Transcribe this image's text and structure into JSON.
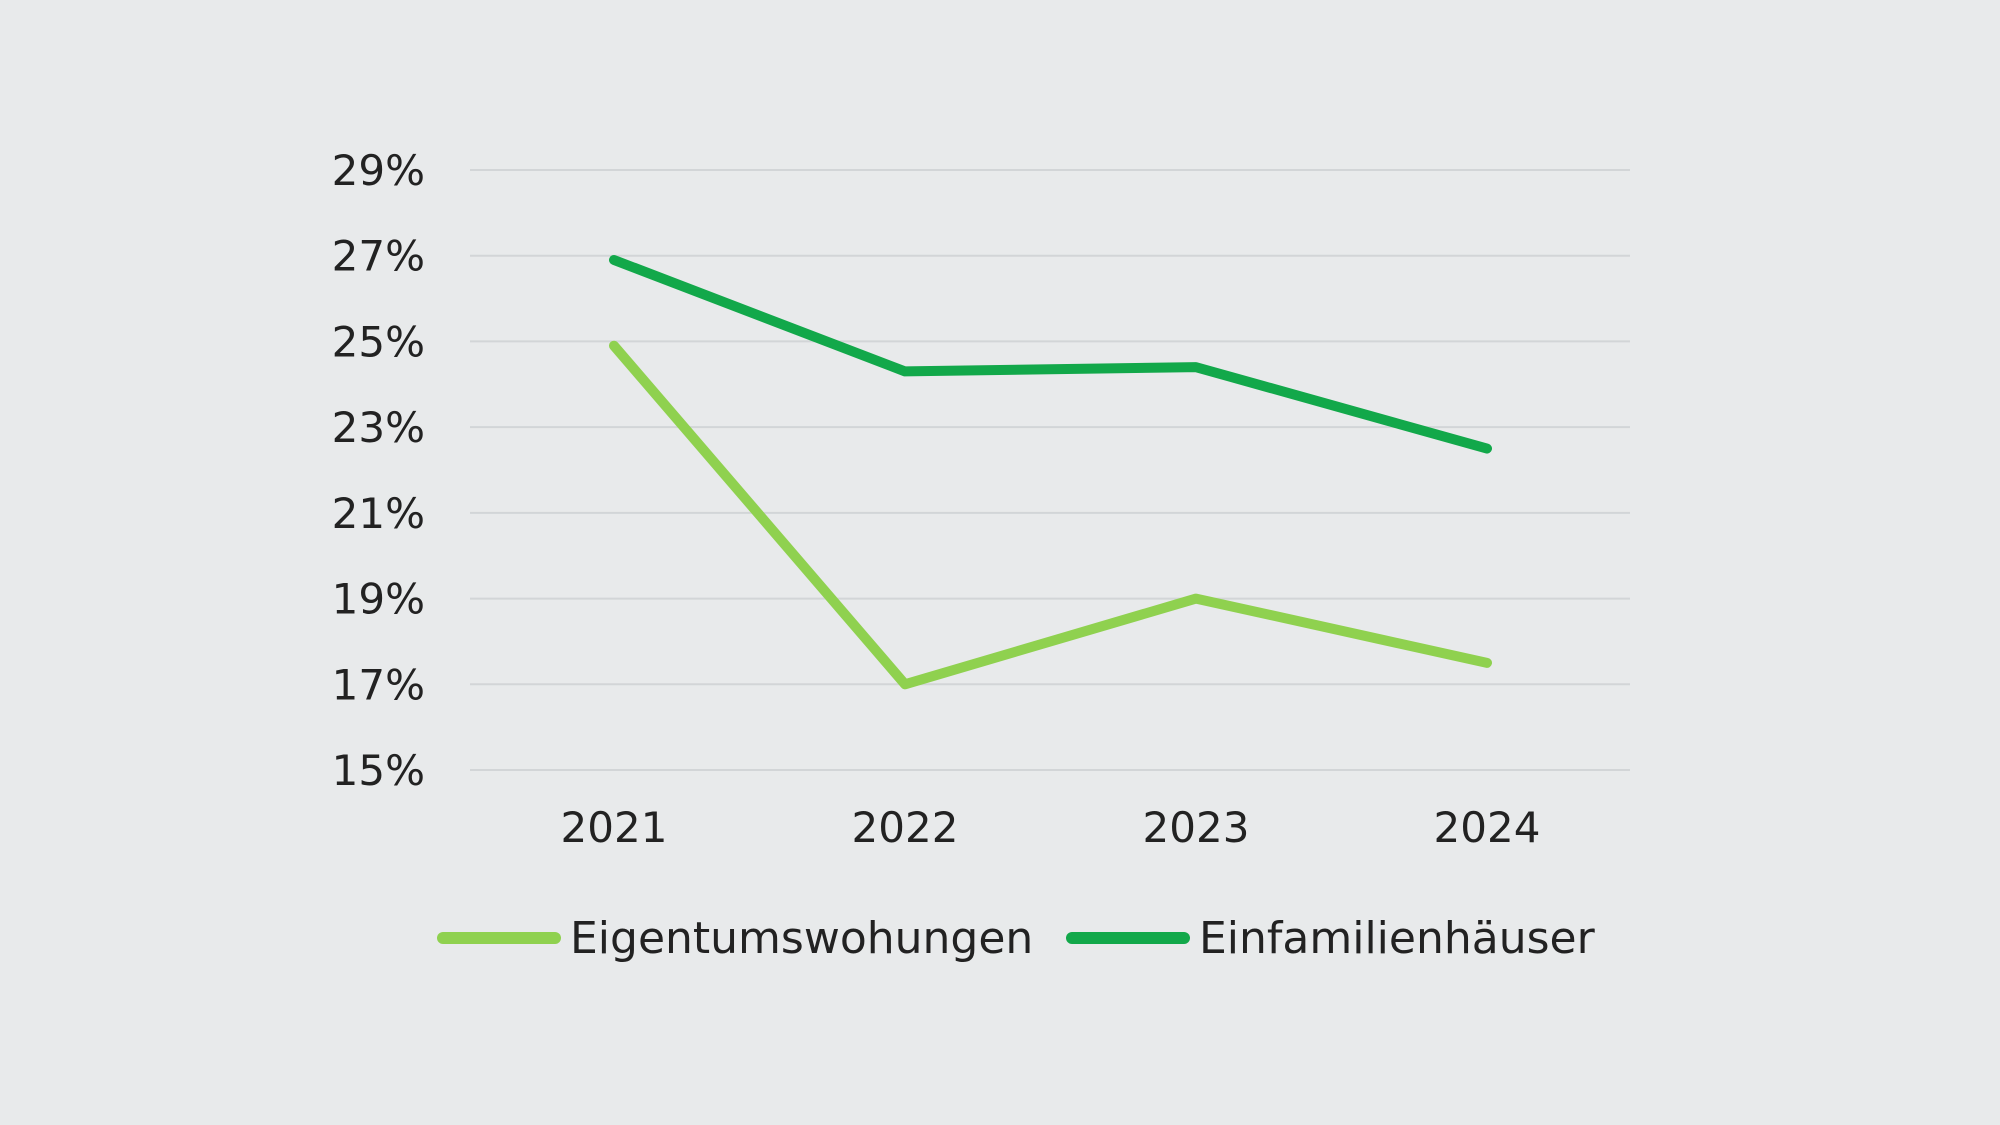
{
  "chart_data": {
    "type": "line",
    "title": "",
    "xlabel": "",
    "ylabel": "",
    "categories": [
      "2021",
      "2022",
      "2023",
      "2024"
    ],
    "ylim": [
      15,
      29
    ],
    "yticks": [
      15,
      17,
      19,
      21,
      23,
      25,
      27,
      29
    ],
    "ytick_labels": [
      "15%",
      "17%",
      "19%",
      "21%",
      "23%",
      "25%",
      "27%",
      "29%"
    ],
    "grid": true,
    "legend_position": "bottom",
    "series": [
      {
        "name": "Eigentumswohungen",
        "color": "#8fd14f",
        "values": [
          24.9,
          17.0,
          19.0,
          17.5
        ]
      },
      {
        "name": "Einfamilienhäuser",
        "color": "#12a84a",
        "values": [
          26.9,
          24.3,
          24.4,
          22.5
        ]
      }
    ]
  }
}
